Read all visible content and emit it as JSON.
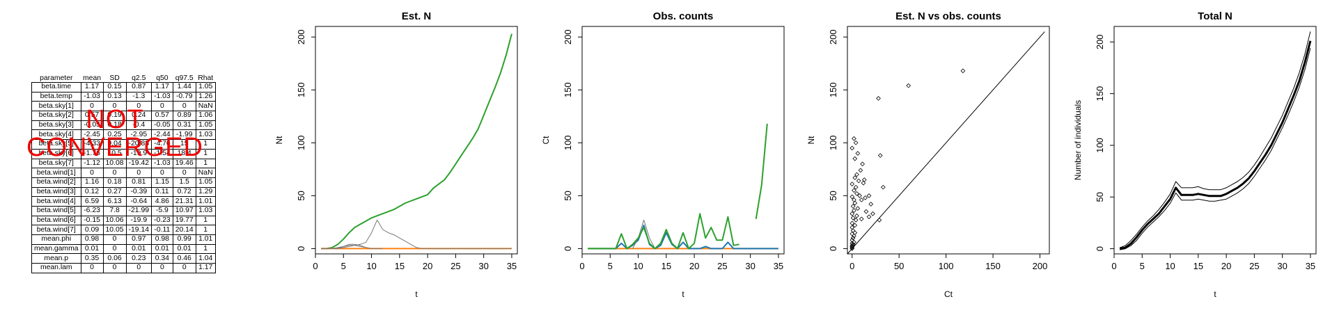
{
  "summary_table": {
    "headers": [
      "parameter",
      "mean",
      "SD",
      "q2.5",
      "q50",
      "q97.5",
      "Rhat"
    ],
    "rows": [
      [
        "beta.time",
        "1.17",
        "0.15",
        "0.87",
        "1.17",
        "1.44",
        "1.05"
      ],
      [
        "beta.temp",
        "-1.03",
        "0.13",
        "-1.3",
        "-1.03",
        "-0.79",
        "1.26"
      ],
      [
        "beta.sky[1]",
        "0",
        "0",
        "0",
        "0",
        "0",
        "NaN"
      ],
      [
        "beta.sky[2]",
        "0.57",
        "0.19",
        "0.24",
        "0.57",
        "0.89",
        "1.06"
      ],
      [
        "beta.sky[3]",
        "-0.05",
        "0.18",
        "-0.4",
        "-0.05",
        "0.31",
        "1.05"
      ],
      [
        "beta.sky[4]",
        "-2.45",
        "0.25",
        "-2.95",
        "-2.44",
        "-1.99",
        "1.03"
      ],
      [
        "beta.sky[5]",
        "-4.33",
        "9.04",
        "-20.88",
        "-4.76",
        "15",
        "1"
      ],
      [
        "beta.sky[6]",
        "-1.76",
        "10.5",
        "-19.9",
        "-1.54",
        "18.4",
        "1"
      ],
      [
        "beta.sky[7]",
        "-1.12",
        "10.08",
        "-19.42",
        "-1.03",
        "19.46",
        "1"
      ],
      [
        "beta.wind[1]",
        "0",
        "0",
        "0",
        "0",
        "0",
        "NaN"
      ],
      [
        "beta.wind[2]",
        "1.16",
        "0.18",
        "0.81",
        "1.15",
        "1.5",
        "1.05"
      ],
      [
        "beta.wind[3]",
        "0.12",
        "0.27",
        "-0.39",
        "0.11",
        "0.72",
        "1.29"
      ],
      [
        "beta.wind[4]",
        "6.59",
        "6.13",
        "-0.64",
        "4.86",
        "21.31",
        "1.01"
      ],
      [
        "beta.wind[5]",
        "-6.23",
        "7.8",
        "-21.99",
        "-5.9",
        "10.97",
        "1.03"
      ],
      [
        "beta.wind[6]",
        "-0.15",
        "10.06",
        "-19.9",
        "-0.23",
        "19.77",
        "1"
      ],
      [
        "beta.wind[7]",
        "0.09",
        "10.05",
        "-19.14",
        "-0.11",
        "20.14",
        "1"
      ],
      [
        "mean.phi",
        "0.98",
        "0",
        "0.97",
        "0.98",
        "0.99",
        "1.01"
      ],
      [
        "mean.gamma",
        "0.01",
        "0",
        "0.01",
        "0.01",
        "0.01",
        "1"
      ],
      [
        "mean.p",
        "0.35",
        "0.06",
        "0.23",
        "0.34",
        "0.46",
        "1.04"
      ],
      [
        "mean.lam",
        "0",
        "0",
        "0",
        "0",
        "0",
        "1.17"
      ]
    ],
    "warning": [
      "NOT",
      "CONVERGED"
    ]
  },
  "chart_data": [
    {
      "type": "line",
      "title": "Est. N",
      "xlabel": "t",
      "ylabel": "Nt",
      "xlim": [
        0,
        36
      ],
      "ylim": [
        -5,
        210
      ],
      "xticks": [
        0,
        5,
        10,
        15,
        20,
        25,
        30,
        35
      ],
      "yticks": [
        0,
        50,
        100,
        150,
        200
      ],
      "series": [
        {
          "color": "#2ca02c",
          "x": [
            1,
            2,
            3,
            4,
            5,
            6,
            7,
            8,
            9,
            10,
            11,
            12,
            13,
            14,
            15,
            16,
            17,
            18,
            19,
            20,
            21,
            22,
            23,
            24,
            25,
            26,
            27,
            28,
            29,
            30,
            31,
            32,
            33,
            34,
            35
          ],
          "y": [
            0,
            0,
            1,
            4,
            9,
            15,
            20,
            23,
            26,
            29,
            31,
            33,
            35,
            37,
            40,
            43,
            45,
            47,
            49,
            51,
            57,
            61,
            65,
            72,
            80,
            88,
            96,
            104,
            113,
            126,
            139,
            152,
            166,
            183,
            203
          ]
        },
        {
          "color": "#ff7f0e",
          "x": [
            1,
            35
          ],
          "y": [
            0,
            0
          ]
        },
        {
          "color": "#777777",
          "x": [
            1,
            2,
            3,
            4,
            5,
            6,
            7,
            8,
            9,
            10,
            11,
            12,
            13,
            14,
            15,
            16,
            17,
            18,
            19,
            20,
            35
          ],
          "y": [
            0,
            0,
            0,
            0,
            1,
            2,
            3,
            4,
            6,
            15,
            27,
            18,
            15,
            13,
            10,
            7,
            4,
            1,
            0,
            0,
            0
          ]
        },
        {
          "color": "#777777",
          "x": [
            1,
            3,
            4,
            5,
            6,
            7,
            8,
            9,
            10,
            11,
            12
          ],
          "y": [
            0,
            0,
            1,
            2,
            3,
            3,
            2,
            1,
            0,
            0,
            0
          ]
        },
        {
          "color": "#777777",
          "x": [
            2,
            4,
            5,
            6,
            7,
            8,
            9,
            10
          ],
          "y": [
            0,
            0,
            2,
            4,
            4,
            3,
            1,
            0
          ]
        }
      ]
    },
    {
      "type": "line",
      "title": "Obs. counts",
      "xlabel": "t",
      "ylabel": "Ct",
      "xlim": [
        0,
        36
      ],
      "ylim": [
        -5,
        210
      ],
      "xticks": [
        0,
        5,
        10,
        15,
        20,
        25,
        30,
        35
      ],
      "yticks": [
        0,
        50,
        100,
        150,
        200
      ],
      "series": [
        {
          "color": "#ff7f0e",
          "x": [
            1,
            35
          ],
          "y": [
            0,
            0
          ]
        },
        {
          "color": "#1f77b4",
          "x": [
            1,
            6,
            7,
            8,
            9,
            10,
            11,
            12,
            13,
            14,
            15,
            16,
            17,
            18,
            19,
            20,
            21,
            22,
            23,
            24,
            25,
            26,
            27,
            28,
            29,
            30,
            31,
            32,
            33,
            34,
            35
          ],
          "y": [
            0,
            0,
            5,
            0,
            3,
            8,
            22,
            4,
            0,
            3,
            15,
            4,
            0,
            6,
            0,
            0,
            0,
            2,
            0,
            0,
            0,
            6,
            0,
            0,
            0,
            0,
            0,
            0,
            0,
            0,
            0
          ]
        },
        {
          "color": "#777777",
          "x": [
            9,
            10,
            11,
            12,
            13
          ],
          "y": [
            0,
            10,
            27,
            10,
            0
          ]
        },
        {
          "color": "#2ca02c",
          "x": [
            1,
            2,
            3,
            4,
            5,
            6,
            7,
            8,
            9,
            10,
            11,
            12,
            13,
            14,
            15,
            16,
            17,
            18,
            19,
            20,
            21,
            22,
            23,
            24,
            25,
            26,
            27,
            28
          ],
          "y": [
            0,
            0,
            0,
            0,
            0,
            0,
            14,
            0,
            4,
            10,
            20,
            5,
            0,
            5,
            18,
            5,
            0,
            15,
            0,
            5,
            33,
            10,
            20,
            8,
            8,
            30,
            3,
            4
          ]
        },
        {
          "color": "#2ca02c",
          "x": [
            31,
            32,
            33
          ],
          "y": [
            28,
            60,
            118
          ]
        }
      ]
    },
    {
      "type": "scatter",
      "title": "Est. N vs obs. counts",
      "xlabel": "Ct",
      "ylabel": "Nt",
      "xlim": [
        -5,
        210
      ],
      "ylim": [
        -5,
        210
      ],
      "xticks": [
        0,
        50,
        100,
        150,
        200
      ],
      "yticks": [
        0,
        50,
        100,
        150,
        200
      ],
      "reference_line": [
        [
          -5,
          -5
        ],
        [
          205,
          205
        ]
      ],
      "points": [
        [
          0,
          0
        ],
        [
          0,
          1
        ],
        [
          0,
          2
        ],
        [
          0,
          3
        ],
        [
          1,
          4
        ],
        [
          0,
          5
        ],
        [
          2,
          6
        ],
        [
          0,
          8
        ],
        [
          1,
          10
        ],
        [
          2,
          12
        ],
        [
          0,
          14
        ],
        [
          3,
          15
        ],
        [
          1,
          17
        ],
        [
          0,
          20
        ],
        [
          3,
          22
        ],
        [
          0,
          24
        ],
        [
          4,
          27
        ],
        [
          1,
          29
        ],
        [
          5,
          31
        ],
        [
          0,
          33
        ],
        [
          2,
          36
        ],
        [
          6,
          38
        ],
        [
          1,
          40
        ],
        [
          3,
          43
        ],
        [
          2,
          46
        ],
        [
          0,
          49
        ],
        [
          5,
          52
        ],
        [
          8,
          50
        ],
        [
          10,
          46
        ],
        [
          14,
          48
        ],
        [
          18,
          50
        ],
        [
          2,
          55
        ],
        [
          4,
          58
        ],
        [
          0,
          61
        ],
        [
          7,
          64
        ],
        [
          12,
          62
        ],
        [
          3,
          67
        ],
        [
          5,
          70
        ],
        [
          9,
          74
        ],
        [
          11,
          80
        ],
        [
          3,
          85
        ],
        [
          6,
          90
        ],
        [
          0,
          95
        ],
        [
          4,
          100
        ],
        [
          2,
          104
        ],
        [
          15,
          35
        ],
        [
          18,
          30
        ],
        [
          10,
          28
        ],
        [
          13,
          65
        ],
        [
          20,
          42
        ],
        [
          22,
          33
        ],
        [
          30,
          88
        ],
        [
          33,
          58
        ],
        [
          28,
          142
        ],
        [
          60,
          154
        ],
        [
          118,
          168
        ],
        [
          29,
          27
        ]
      ]
    },
    {
      "type": "line",
      "title": "Total N",
      "xlabel": "t",
      "ylabel": "Number of individuals",
      "xlim": [
        0,
        36
      ],
      "ylim": [
        -5,
        215
      ],
      "xticks": [
        0,
        5,
        10,
        15,
        20,
        25,
        30,
        35
      ],
      "yticks": [
        0,
        50,
        100,
        150,
        200
      ],
      "series": [
        {
          "name": "",
          "color": "#000000",
          "width": 3,
          "x": [
            1,
            2,
            3,
            4,
            5,
            6,
            7,
            8,
            9,
            10,
            11,
            12,
            13,
            14,
            15,
            16,
            17,
            18,
            19,
            20,
            21,
            22,
            23,
            24,
            25,
            26,
            27,
            28,
            29,
            30,
            31,
            32,
            33,
            34,
            35
          ],
          "y": [
            0,
            1,
            5,
            11,
            18,
            24,
            29,
            34,
            41,
            48,
            59,
            52,
            52,
            52,
            53,
            52,
            51,
            51,
            51,
            53,
            56,
            59,
            63,
            68,
            75,
            83,
            91,
            100,
            111,
            122,
            135,
            148,
            162,
            180,
            201
          ]
        },
        {
          "name": "",
          "color": "#000000",
          "width": 1,
          "x": [
            1,
            2,
            3,
            4,
            5,
            6,
            7,
            8,
            9,
            10,
            11,
            12,
            13,
            14,
            15,
            16,
            17,
            18,
            19,
            20,
            21,
            22,
            23,
            24,
            25,
            26,
            27,
            28,
            29,
            30,
            31,
            32,
            33,
            34,
            35
          ],
          "y": [
            -1,
            0,
            3,
            8,
            15,
            21,
            26,
            31,
            37,
            44,
            54,
            47,
            47,
            47,
            48,
            47,
            46,
            46,
            47,
            48,
            51,
            54,
            58,
            63,
            70,
            78,
            86,
            95,
            106,
            117,
            129,
            142,
            156,
            173,
            194
          ]
        },
        {
          "name": "",
          "color": "#000000",
          "width": 1,
          "x": [
            1,
            2,
            3,
            4,
            5,
            6,
            7,
            8,
            9,
            10,
            11,
            12,
            13,
            14,
            15,
            16,
            17,
            18,
            19,
            20,
            21,
            22,
            23,
            24,
            25,
            26,
            27,
            28,
            29,
            30,
            31,
            32,
            33,
            34,
            35
          ],
          "y": [
            1,
            3,
            8,
            14,
            21,
            27,
            32,
            38,
            45,
            53,
            65,
            59,
            59,
            59,
            60,
            58,
            57,
            57,
            57,
            59,
            62,
            65,
            69,
            74,
            81,
            89,
            98,
            107,
            118,
            129,
            142,
            155,
            170,
            188,
            210
          ]
        }
      ]
    }
  ]
}
